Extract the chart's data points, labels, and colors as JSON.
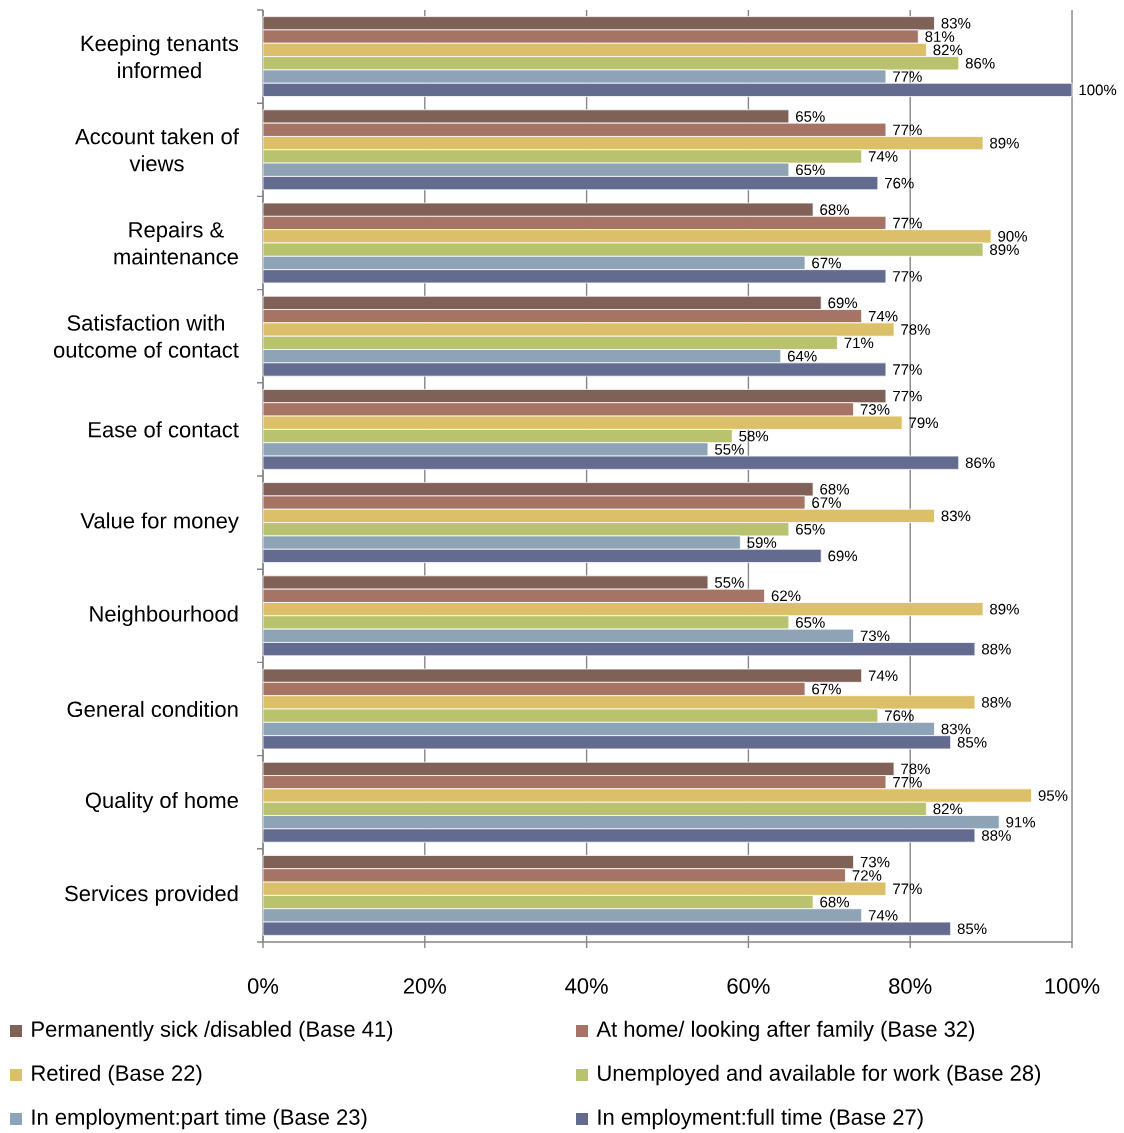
{
  "chart_data": {
    "type": "bar",
    "orientation": "horizontal",
    "categories": [
      "Keeping tenants informed",
      "Account taken of views",
      "Repairs & maintenance",
      "Satisfaction with outcome of contact",
      "Ease of contact",
      "Value for money",
      "Neighbourhood",
      "General condition",
      "Quality of home",
      "Services provided"
    ],
    "series": [
      {
        "name": "Permanently sick /disabled (Base 41)",
        "color": "#7f6158",
        "values": [
          83,
          65,
          68,
          69,
          77,
          68,
          55,
          74,
          78,
          73
        ],
        "value_labels": [
          "83%",
          "65%",
          "68%",
          "69%",
          "77%",
          "68%",
          "55%",
          "74%",
          "78%",
          "73%"
        ]
      },
      {
        "name": "At home/ looking after family (Base 32)",
        "color": "#a57464",
        "values": [
          81,
          77,
          77,
          74,
          73,
          67,
          62,
          67,
          77,
          72
        ],
        "value_labels": [
          "81%",
          "77%",
          "77%",
          "74%",
          "73%",
          "67%",
          "62%",
          "67%",
          "77%",
          "72%"
        ]
      },
      {
        "name": "Retired (Base 22)",
        "color": "#dcbf69",
        "values": [
          82,
          89,
          90,
          78,
          79,
          83,
          89,
          88,
          95,
          77
        ],
        "value_labels": [
          "82%",
          "89%",
          "90%",
          "78%",
          "79%",
          "83%",
          "89%",
          "88%",
          "95%",
          "77%"
        ]
      },
      {
        "name": "Unemployed and available for work (Base 28)",
        "color": "#b8c26f",
        "values": [
          86,
          74,
          89,
          71,
          58,
          65,
          65,
          76,
          82,
          68
        ],
        "value_labels": [
          "86%",
          "74%",
          "89%",
          "71%",
          "58%",
          "65%",
          "65%",
          "76%",
          "82%",
          "68%"
        ]
      },
      {
        "name": "In employment:part time (Base 23)",
        "color": "#8ea3b6",
        "values": [
          77,
          65,
          67,
          64,
          55,
          59,
          73,
          83,
          91,
          74
        ],
        "value_labels": [
          "77%",
          "65%",
          "67%",
          "64%",
          "55%",
          "59%",
          "73%",
          "83%",
          "91%",
          "74%"
        ]
      },
      {
        "name": "In employment:full time (Base 27)",
        "color": "#636b8f",
        "values": [
          100,
          76,
          77,
          77,
          86,
          69,
          88,
          85,
          88,
          85
        ],
        "value_labels": [
          "100%",
          "76%",
          "77%",
          "77%",
          "86%",
          "69%",
          "88%",
          "85%",
          "88%",
          "85%"
        ]
      }
    ],
    "xlim": [
      0,
      100
    ],
    "xticks": [
      {
        "value": 0,
        "label": "0%"
      },
      {
        "value": 20,
        "label": "20%"
      },
      {
        "value": 40,
        "label": "40%"
      },
      {
        "value": 60,
        "label": "60%"
      },
      {
        "value": 80,
        "label": "80%"
      },
      {
        "value": 100,
        "label": "100%"
      }
    ],
    "grid": "x",
    "legend": "bottom"
  }
}
